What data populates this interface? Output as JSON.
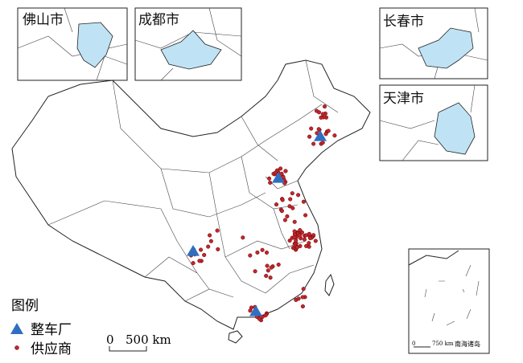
{
  "insets": [
    {
      "label": "佛山市"
    },
    {
      "label": "成都市"
    },
    {
      "label": "长春市"
    },
    {
      "label": "天津市"
    }
  ],
  "legend": {
    "title": "图例",
    "items": [
      {
        "label": "整车厂"
      },
      {
        "label": "供应商"
      }
    ]
  },
  "scale_bar": {
    "start": "0",
    "end": "500 km"
  },
  "south_sea_inset": {
    "title": "南海诸岛",
    "scale_start": "0",
    "scale_end": "750 km"
  }
}
